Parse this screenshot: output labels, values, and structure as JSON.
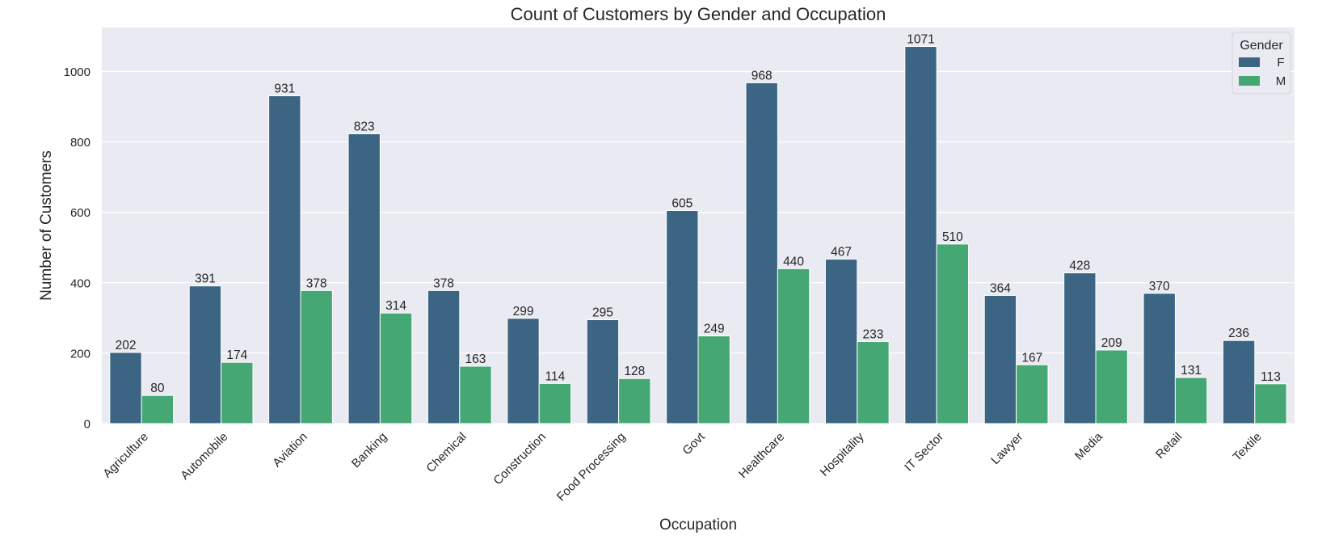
{
  "chart_data": {
    "type": "bar",
    "title": "Count of Customers by Gender and Occupation",
    "xlabel": "Occupation",
    "ylabel": "Number of Customers",
    "ylim": [
      0,
      1125
    ],
    "yticks": [
      0,
      200,
      400,
      600,
      800,
      1000
    ],
    "grid": true,
    "legend": {
      "title": "Gender",
      "position": "top-right"
    },
    "categories": [
      "Agriculture",
      "Automobile",
      "Aviation",
      "Banking",
      "Chemical",
      "Construction",
      "Food Processing",
      "Govt",
      "Healthcare",
      "Hospitality",
      "IT Sector",
      "Lawyer",
      "Media",
      "Retail",
      "Textile"
    ],
    "series": [
      {
        "name": "F",
        "color": "#3b6583",
        "values": [
          202,
          391,
          931,
          823,
          378,
          299,
          295,
          605,
          968,
          467,
          1071,
          364,
          428,
          370,
          236
        ]
      },
      {
        "name": "M",
        "color": "#45a874",
        "values": [
          80,
          174,
          378,
          314,
          163,
          114,
          128,
          249,
          440,
          233,
          510,
          167,
          209,
          131,
          113
        ]
      }
    ],
    "colors": {
      "plot_background": "#eaeaf2",
      "gridline": "#ffffff"
    }
  }
}
